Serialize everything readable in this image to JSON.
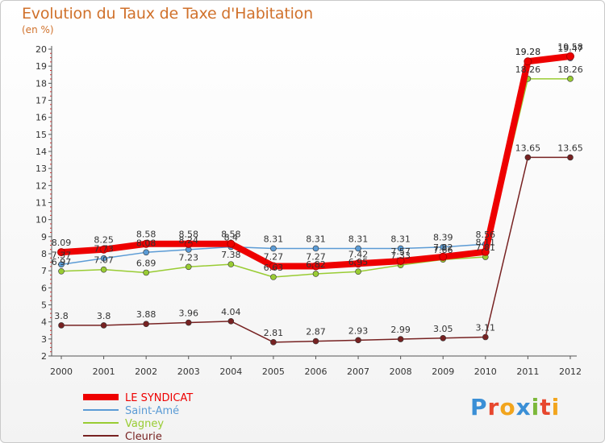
{
  "header": {
    "title": "Evolution du Taux de Taxe d'Habitation",
    "subtitle": "(en %)"
  },
  "logo": {
    "text": "Proxiti"
  },
  "chart_data": {
    "type": "line",
    "title": "Evolution du Taux de Taxe d'Habitation",
    "subtitle": "(en %)",
    "x": [
      "2000",
      "2001",
      "2002",
      "2003",
      "2004",
      "2005",
      "2006",
      "2007",
      "2008",
      "2009",
      "2010",
      "2011",
      "2012"
    ],
    "ylim": [
      2,
      20
    ],
    "yticks": [
      2,
      3,
      4,
      5,
      6,
      7,
      8,
      9,
      10,
      11,
      12,
      13,
      14,
      15,
      16,
      17,
      18,
      19,
      20
    ],
    "grid": false,
    "legend_placement": "bottom-left",
    "series": [
      {
        "name": "LE SYNDICAT",
        "color": "#ee0000",
        "values": [
          8.09,
          8.25,
          8.58,
          8.58,
          8.58,
          7.27,
          7.27,
          7.42,
          7.57,
          7.82,
          8.11,
          19.28,
          19.58
        ],
        "labels": [
          "8.09",
          "8.25",
          "8.58",
          "8.58",
          "8.58",
          "7.27",
          "7.27",
          "7.42",
          "7.57",
          "7.82",
          "8.11",
          "19.28",
          "19.58"
        ]
      },
      {
        "name": "Saint-Amé",
        "color": "#5b9bd5",
        "values": [
          7.37,
          7.73,
          8.08,
          8.24,
          8.4,
          8.31,
          8.31,
          8.31,
          8.31,
          8.39,
          8.56,
          19.28,
          19.47
        ],
        "labels": [
          "7.37",
          "7.73",
          "8.08",
          "8.24",
          "8.4",
          "8.31",
          "8.31",
          "8.31",
          "8.31",
          "8.39",
          "8.56",
          "19.28",
          "19.47"
        ]
      },
      {
        "name": "Vagney",
        "color": "#99cc33",
        "values": [
          6.97,
          7.07,
          6.89,
          7.23,
          7.38,
          6.63,
          6.82,
          6.95,
          7.33,
          7.66,
          7.81,
          18.26,
          18.26
        ],
        "labels": [
          "6.97",
          "7.07",
          "6.89",
          "7.23",
          "7.38",
          "6.63",
          "6.82",
          "6.95",
          "7.33",
          "7.66",
          "7.81",
          "18.26",
          "18.26"
        ]
      },
      {
        "name": "Cleurie",
        "color": "#772222",
        "values": [
          3.8,
          3.8,
          3.88,
          3.96,
          4.04,
          2.81,
          2.87,
          2.93,
          2.99,
          3.05,
          3.11,
          13.65,
          13.65
        ],
        "labels": [
          "3.8",
          "3.8",
          "3.88",
          "3.96",
          "4.04",
          "2.81",
          "2.87",
          "2.93",
          "2.99",
          "3.05",
          "3.11",
          "13.65",
          "13.65"
        ]
      }
    ]
  }
}
